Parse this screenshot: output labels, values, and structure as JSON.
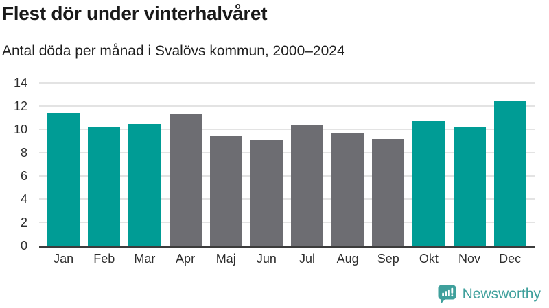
{
  "header": {
    "title": "Flest dör under vinterhalvåret",
    "subtitle": "Antal döda per månad i Svalövs kommun, 2000–2024"
  },
  "footer": {
    "brand": "Newsworthy",
    "logo_icon": "bar-chart-speech-bubble-icon"
  },
  "colors": {
    "winter_teal": "#009c95",
    "summer_gray": "#6d6d72",
    "axis_line": "#3c3c3c",
    "gridline": "#e3e3e3",
    "brand_teal": "#3fa09c"
  },
  "chart_data": {
    "type": "bar",
    "title": "Flest dör under vinterhalvåret",
    "subtitle": "Antal döda per månad i Svalövs kommun, 2000–2024",
    "categories": [
      "Jan",
      "Feb",
      "Mar",
      "Apr",
      "Maj",
      "Jun",
      "Jul",
      "Aug",
      "Sep",
      "Okt",
      "Nov",
      "Dec"
    ],
    "values": [
      11.4,
      10.2,
      10.5,
      11.3,
      9.5,
      9.1,
      10.4,
      9.7,
      9.2,
      10.7,
      10.2,
      12.5
    ],
    "bar_colors": [
      "#009c95",
      "#009c95",
      "#009c95",
      "#6d6d72",
      "#6d6d72",
      "#6d6d72",
      "#6d6d72",
      "#6d6d72",
      "#6d6d72",
      "#009c95",
      "#009c95",
      "#009c95"
    ],
    "xlabel": "",
    "ylabel": "",
    "yticks": [
      0,
      2,
      4,
      6,
      8,
      10,
      12,
      14
    ],
    "ylim": [
      0,
      14
    ],
    "grid": true,
    "legend": false
  }
}
